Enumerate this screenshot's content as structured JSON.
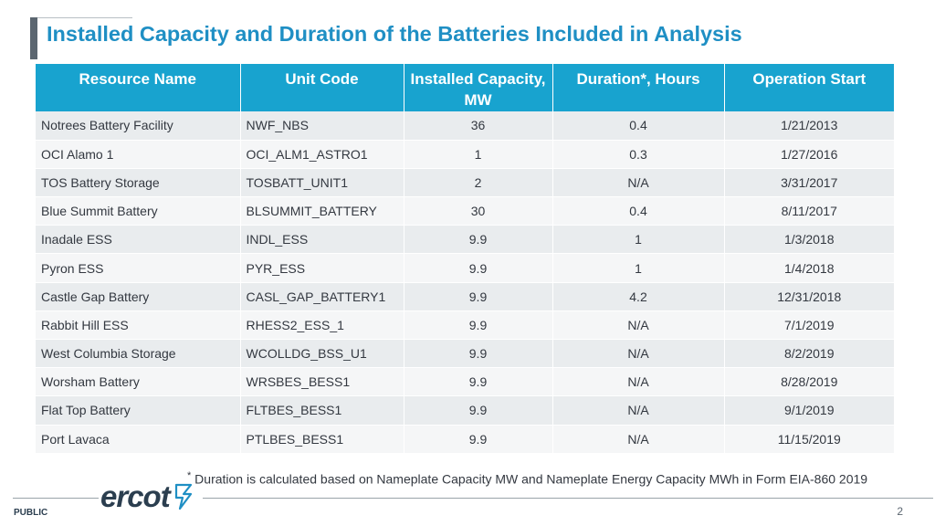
{
  "slide": {
    "title": "Installed Capacity and Duration of the Batteries Included in Analysis",
    "footnote_marker": "*",
    "footnote": "Duration is calculated based on Nameplate Capacity MW and Nameplate Energy Capacity MWh in Form EIA-860 2019",
    "classification": "PUBLIC",
    "page_number": "2",
    "logo_text": "ercot"
  },
  "table": {
    "headers": [
      "Resource Name",
      "Unit Code",
      "Installed Capacity, MW",
      "Duration*, Hours",
      "Operation Start"
    ],
    "rows": [
      [
        "Notrees Battery Facility",
        "NWF_NBS",
        "36",
        "0.4",
        "1/21/2013"
      ],
      [
        "OCI Alamo 1",
        "OCI_ALM1_ASTRO1",
        "1",
        "0.3",
        "1/27/2016"
      ],
      [
        "TOS Battery Storage",
        "TOSBATT_UNIT1",
        "2",
        "N/A",
        "3/31/2017"
      ],
      [
        "Blue Summit Battery",
        "BLSUMMIT_BATTERY",
        "30",
        "0.4",
        "8/11/2017"
      ],
      [
        "Inadale ESS",
        "INDL_ESS",
        "9.9",
        "1",
        "1/3/2018"
      ],
      [
        "Pyron ESS",
        "PYR_ESS",
        "9.9",
        "1",
        "1/4/2018"
      ],
      [
        "Castle Gap Battery",
        "CASL_GAP_BATTERY1",
        "9.9",
        "4.2",
        "12/31/2018"
      ],
      [
        "Rabbit Hill ESS",
        "RHESS2_ESS_1",
        "9.9",
        "N/A",
        "7/1/2019"
      ],
      [
        "West Columbia Storage",
        "WCOLLDG_BSS_U1",
        "9.9",
        "N/A",
        "8/2/2019"
      ],
      [
        "Worsham Battery",
        "WRSBES_BESS1",
        "9.9",
        "N/A",
        "8/28/2019"
      ],
      [
        "Flat Top Battery",
        "FLTBES_BESS1",
        "9.9",
        "N/A",
        "9/1/2019"
      ],
      [
        "Port Lavaca",
        "PTLBES_BESS1",
        "9.9",
        "N/A",
        "11/15/2019"
      ]
    ]
  }
}
